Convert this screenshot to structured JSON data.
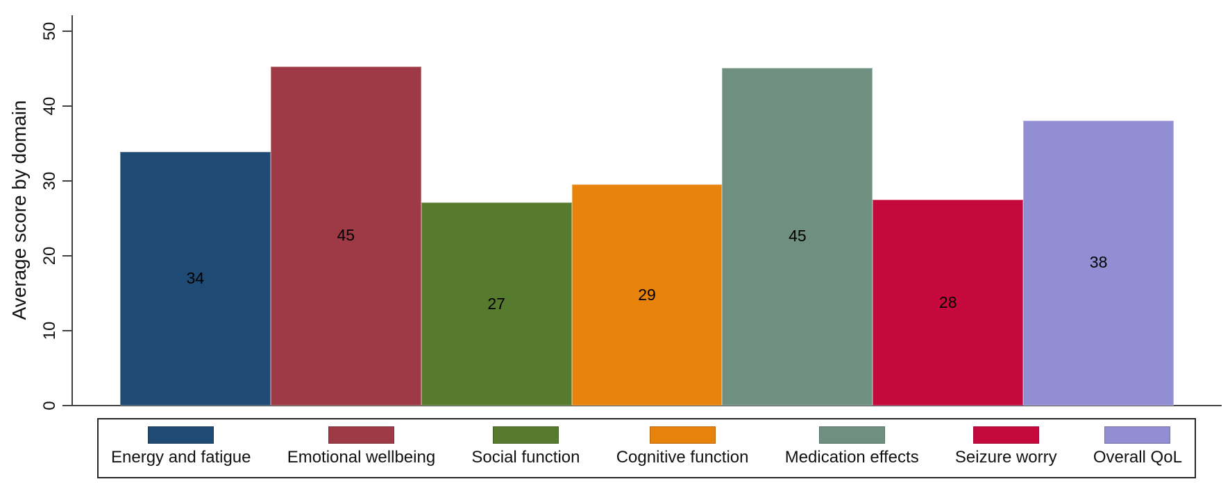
{
  "chart_data": {
    "type": "bar",
    "title": "",
    "xlabel": "",
    "ylabel": "Average score by domain",
    "ylim": [
      0,
      50
    ],
    "yticks": [
      0,
      10,
      20,
      30,
      40,
      50
    ],
    "grid": false,
    "legend_position": "bottom",
    "categories": [
      "Energy and fatigue",
      "Emotional wellbeing",
      "Social function",
      "Cognitive function",
      "Medication effects",
      "Seizure worry",
      "Overall QoL"
    ],
    "values": [
      34,
      45,
      27,
      29,
      45,
      28,
      38
    ],
    "value_labels": [
      "34",
      "45",
      "27",
      "29",
      "45",
      "28",
      "38"
    ],
    "bar_heights_estimated": [
      33.9,
      45.3,
      27.1,
      29.5,
      45.1,
      27.5,
      38.1
    ],
    "colors": [
      "#1e4a73",
      "#9e3a46",
      "#567a2e",
      "#e7820a",
      "#6f8f80",
      "#c6093c",
      "#928ed4"
    ],
    "axis_color": "#404040",
    "text_color": "#111111",
    "legend_border_color": "#262626"
  }
}
